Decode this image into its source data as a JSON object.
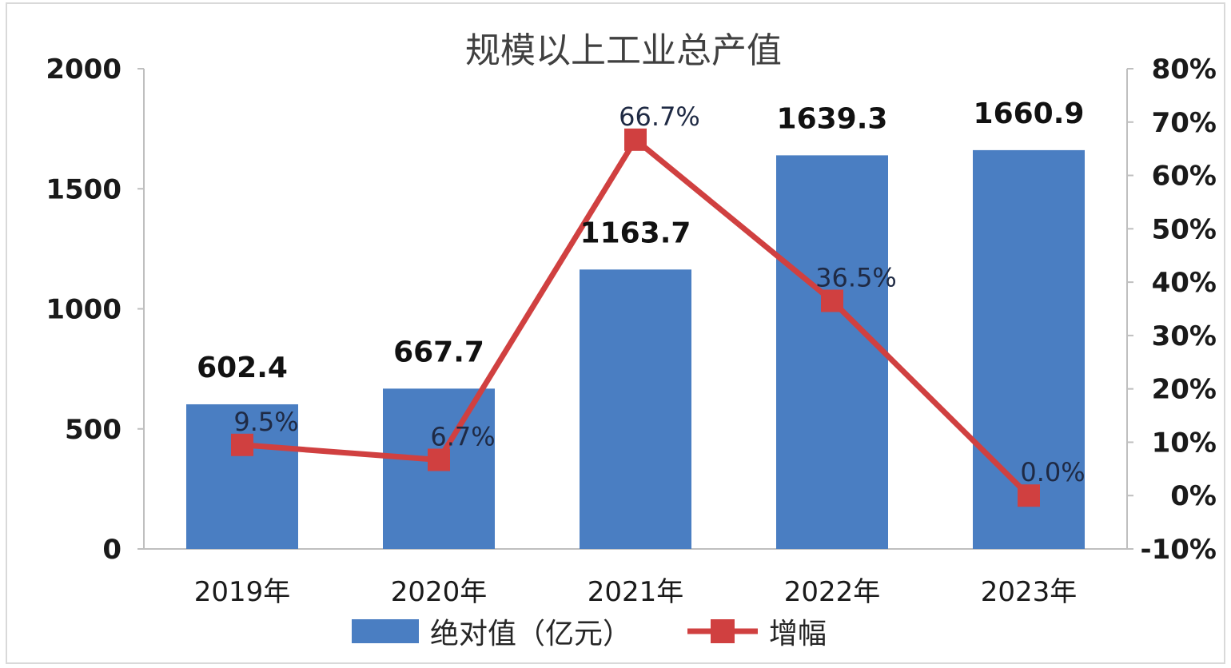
{
  "chart_data": {
    "type": "bar",
    "title": "规模以上工业总产值",
    "categories": [
      "2019年",
      "2020年",
      "2021年",
      "2022年",
      "2023年"
    ],
    "series": [
      {
        "name": "绝对值（亿元）",
        "type": "bar",
        "axis": "left",
        "values": [
          602.4,
          667.7,
          1163.7,
          1639.3,
          1660.9
        ],
        "labels": [
          "602.4",
          "667.7",
          "1163.7",
          "1639.3",
          "1660.9"
        ],
        "color": "#4a7ec2"
      },
      {
        "name": "增幅",
        "type": "line",
        "axis": "right",
        "values": [
          9.5,
          6.7,
          66.7,
          36.5,
          0.0
        ],
        "labels": [
          "9.5%",
          "6.7%",
          "66.7%",
          "36.5%",
          "0.0%"
        ],
        "color": "#d04040"
      }
    ],
    "y_left": {
      "min": 0,
      "max": 2000,
      "ticks": [
        "0",
        "500",
        "1000",
        "1500",
        "2000"
      ]
    },
    "y_right": {
      "min": -10,
      "max": 80,
      "ticks": [
        "-10%",
        "0%",
        "10%",
        "20%",
        "30%",
        "40%",
        "50%",
        "60%",
        "70%",
        "80%"
      ]
    },
    "grid": false,
    "legend": "bottom"
  }
}
